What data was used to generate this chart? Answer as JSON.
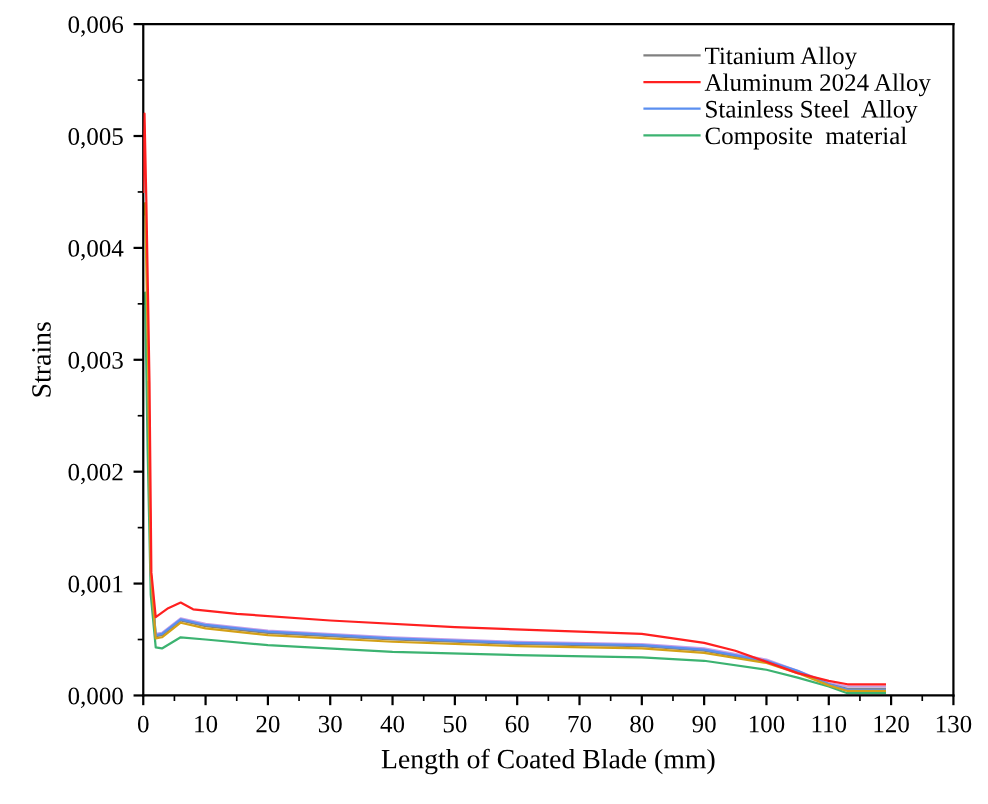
{
  "chart_data": {
    "type": "line",
    "xlabel": "Length of Coated Blade (mm)",
    "ylabel": "Strains",
    "xlim": [
      0,
      130
    ],
    "xticks": [
      0,
      10,
      20,
      30,
      40,
      50,
      60,
      70,
      80,
      90,
      100,
      110,
      120,
      130
    ],
    "ylim": [
      0,
      0.006
    ],
    "yticks": [
      {
        "value": 0,
        "label": "0,000"
      },
      {
        "value": 0.001,
        "label": "0,001"
      },
      {
        "value": 0.002,
        "label": "0,002"
      },
      {
        "value": 0.003,
        "label": "0,003"
      },
      {
        "value": 0.004,
        "label": "0,004"
      },
      {
        "value": 0.005,
        "label": "0,005"
      },
      {
        "value": 0.006,
        "label": "0,006"
      }
    ],
    "grid": false,
    "legend": "top right",
    "marker": "none",
    "line_style": "solid",
    "series": [
      {
        "name": "Titanium Alloy",
        "color": "#808080",
        "x": [
          0.8,
          1.2,
          2,
          3,
          6,
          10,
          20,
          40,
          60,
          80,
          90,
          100,
          105,
          110,
          113,
          119
        ],
        "values": [
          0.0028,
          0.0011,
          0.00053,
          0.00054,
          0.00067,
          0.00062,
          0.00056,
          0.0005,
          0.00046,
          0.00044,
          0.0004,
          0.0003,
          0.00021,
          0.0001,
          6e-05,
          6e-05
        ]
      },
      {
        "name": "Aluminum 2024 Alloy",
        "color": "#ff2020",
        "x": [
          0,
          0.2,
          0.5,
          1,
          1.3,
          2,
          4,
          6,
          8,
          15,
          30,
          50,
          70,
          80,
          90,
          95,
          100,
          105,
          110,
          113,
          119
        ],
        "values": [
          0.0045,
          0.0052,
          0.0044,
          0.0028,
          0.0011,
          0.0007,
          0.00078,
          0.00083,
          0.00077,
          0.00073,
          0.00067,
          0.00061,
          0.00057,
          0.00055,
          0.00047,
          0.0004,
          0.0003,
          0.0002,
          0.00013,
          0.0001,
          0.0001
        ]
      },
      {
        "name": "Stainless Steel  Alloy",
        "color": "#5b8ff0",
        "x": [
          1.2,
          2,
          3,
          6,
          10,
          20,
          40,
          60,
          80,
          90,
          100,
          105,
          110,
          113,
          119
        ],
        "values": [
          0.0011,
          0.00054,
          0.00055,
          0.00068,
          0.00063,
          0.00057,
          0.00051,
          0.00047,
          0.00045,
          0.00041,
          0.00031,
          0.00022,
          0.0001,
          5e-05,
          5e-05
        ]
      },
      {
        "name": "Composite  material",
        "color": "#3cb371",
        "x": [
          0,
          0.3,
          0.7,
          1.2,
          2,
          3,
          6,
          10,
          20,
          40,
          60,
          80,
          90,
          100,
          105,
          110,
          113,
          119
        ],
        "values": [
          0.0035,
          0.0036,
          0.0022,
          0.0009,
          0.00043,
          0.00042,
          0.00052,
          0.0005,
          0.00045,
          0.00039,
          0.00036,
          0.00034,
          0.00031,
          0.00023,
          0.00016,
          8e-05,
          2e-05,
          2e-05
        ]
      },
      {
        "color": "#c8a0e8",
        "x": [
          2,
          3,
          6,
          10,
          20,
          40,
          60,
          80,
          90,
          100,
          105,
          110,
          113,
          119
        ],
        "values": [
          0.00055,
          0.00056,
          0.00069,
          0.00064,
          0.00058,
          0.00052,
          0.00048,
          0.00046,
          0.00042,
          0.00032,
          0.00022,
          0.00011,
          8e-05,
          8e-05
        ]
      },
      {
        "color": "#d4a017",
        "x": [
          0,
          0.3,
          0.8,
          1.2,
          2,
          3,
          6,
          10,
          20,
          40,
          60,
          80,
          90,
          100,
          105,
          110,
          113,
          119
        ],
        "values": [
          0.0043,
          0.0044,
          0.0029,
          0.0011,
          0.00051,
          0.00052,
          0.00065,
          0.0006,
          0.00054,
          0.00048,
          0.00044,
          0.00042,
          0.00038,
          0.00029,
          0.0002,
          9e-05,
          4e-05,
          4e-05
        ]
      }
    ]
  }
}
